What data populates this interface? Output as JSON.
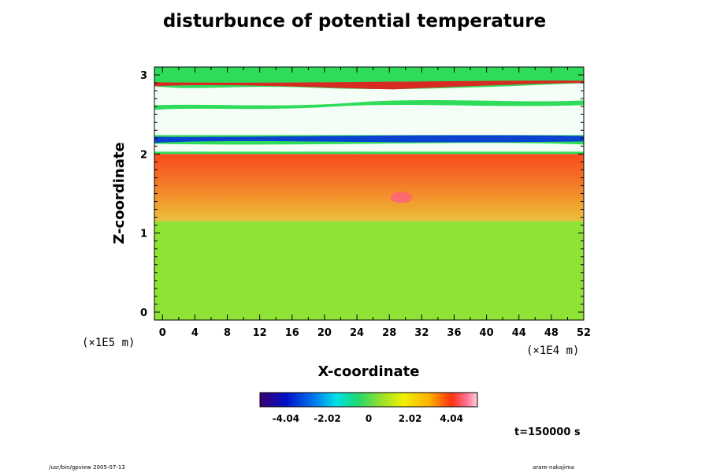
{
  "chart_data": {
    "type": "heatmap",
    "title": "disturbunce of potential temperature",
    "xlabel": "X-coordinate",
    "ylabel": "Z-coordinate",
    "x_unit": "(×1E4 m)",
    "y_unit": "(×1E5 m)",
    "xlim": [
      -1,
      52
    ],
    "ylim": [
      -0.1,
      3.1
    ],
    "x_ticks": [
      "0",
      "4",
      "8",
      "12",
      "16",
      "20",
      "24",
      "28",
      "32",
      "36",
      "40",
      "44",
      "48",
      "52"
    ],
    "y_ticks": [
      "0",
      "1",
      "2",
      "3"
    ],
    "colorbar": {
      "ticks": [
        "-4.04",
        "-2.02",
        "0",
        "2.02",
        "4.04"
      ],
      "range": [
        -5.3,
        5.3
      ]
    },
    "time_label": "t=150000 s",
    "colors": {
      "lower_layer": "#8fe236",
      "middle_layer": "#f46a24",
      "upper_layer": "#2fdc5a"
    },
    "regions": [
      {
        "name": "lower layer",
        "z": [
          -0.1,
          1.15
        ],
        "value": 0.5
      },
      {
        "name": "middle layer",
        "z": [
          1.15,
          2.0
        ],
        "value": 3.7
      },
      {
        "name": "upper layer",
        "z": [
          2.0,
          3.1
        ],
        "value": -0.8
      }
    ]
  },
  "footer": {
    "left": "/usr/bin/gpview 2005-07-13",
    "right": "arare-nakajima"
  }
}
